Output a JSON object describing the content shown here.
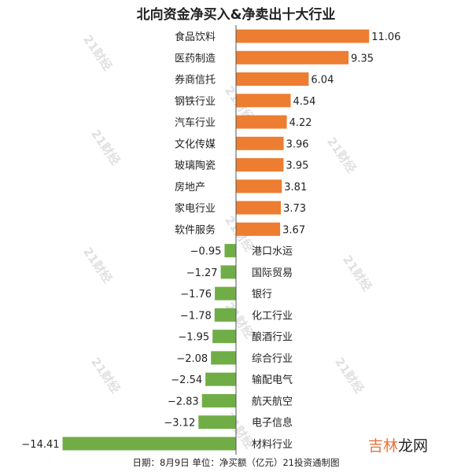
{
  "chart_data": {
    "type": "bar",
    "orientation": "horizontal",
    "title": "北向资金净买入&净卖出十大行业",
    "footer": "日期：8月9日 单位：净买额（亿元）21投资通制图",
    "categories": [
      "食品饮料",
      "医药制造",
      "券商信托",
      "钢铁行业",
      "汽车行业",
      "文化传媒",
      "玻璃陶瓷",
      "房地产",
      "家电行业",
      "软件服务",
      "港口水运",
      "国际贸易",
      "银行",
      "化工行业",
      "酿酒行业",
      "综合行业",
      "输配电气",
      "航天航空",
      "电子信息",
      "材料行业"
    ],
    "values": [
      11.06,
      9.35,
      6.04,
      4.54,
      4.22,
      3.96,
      3.95,
      3.81,
      3.73,
      3.67,
      -0.95,
      -1.27,
      -1.76,
      -1.78,
      -1.95,
      -2.08,
      -2.54,
      -2.83,
      -3.12,
      -14.41
    ],
    "value_labels": [
      "11.06",
      "9.35",
      "6.04",
      "4.54",
      "4.22",
      "3.96",
      "3.95",
      "3.81",
      "3.73",
      "3.67",
      "−0.95",
      "−1.27",
      "−1.76",
      "−1.78",
      "−1.95",
      "−2.08",
      "−2.54",
      "−2.83",
      "−3.12",
      "−14.41"
    ],
    "colors": {
      "positive": "#ed7d31",
      "negative": "#70ad47",
      "axis": "#555555"
    },
    "xlim": [
      -14.41,
      11.06
    ],
    "grid": false
  },
  "watermark": "21财经",
  "logo": {
    "part1": "吉林",
    "part2": "龙网"
  }
}
